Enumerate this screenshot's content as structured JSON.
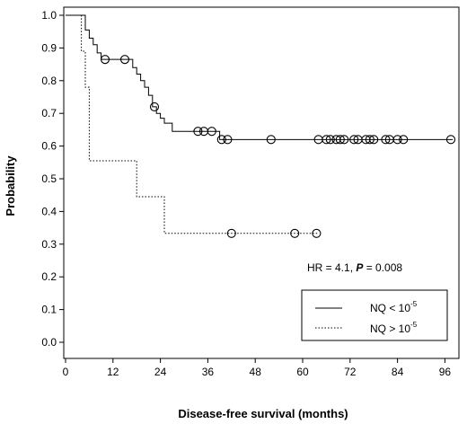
{
  "chart_data": {
    "type": "line",
    "title": "",
    "xlabel": "Disease-free survival (months)",
    "ylabel": "Probability",
    "xlim": [
      0,
      100
    ],
    "ylim": [
      0,
      1.0
    ],
    "x_ticks": [
      0,
      12,
      24,
      36,
      48,
      60,
      72,
      84,
      96
    ],
    "y_ticks": [
      0.0,
      0.1,
      0.2,
      0.3,
      0.4,
      0.5,
      0.6,
      0.7,
      0.8,
      0.9,
      1.0
    ],
    "x_tick_labels": [
      "0",
      "12",
      "24",
      "36",
      "48",
      "60",
      "72",
      "84",
      "96"
    ],
    "y_tick_labels": [
      "0.0",
      "0.1",
      "0.2",
      "0.3",
      "0.4",
      "0.5",
      "0.6",
      "0.7",
      "0.8",
      "0.9",
      "1.0"
    ],
    "grid": false,
    "legend_position": "bottom-right",
    "annotation": {
      "prefix": "HR = 4.1, ",
      "p_label": "P",
      "suffix": " = 0.008"
    },
    "series": [
      {
        "name": "NQ < 10",
        "name_sup": "-5",
        "line_style": "solid",
        "color": "#000000",
        "steps": [
          [
            0,
            1.0
          ],
          [
            5,
            0.955
          ],
          [
            6,
            0.93
          ],
          [
            7,
            0.91
          ],
          [
            8,
            0.885
          ],
          [
            9,
            0.865
          ],
          [
            17,
            0.84
          ],
          [
            18,
            0.82
          ],
          [
            19,
            0.8
          ],
          [
            20,
            0.78
          ],
          [
            21,
            0.755
          ],
          [
            22,
            0.72
          ],
          [
            23,
            0.7
          ],
          [
            24,
            0.685
          ],
          [
            25,
            0.67
          ],
          [
            27,
            0.645
          ],
          [
            39,
            0.62
          ],
          [
            98,
            0.62
          ]
        ],
        "censored": [
          [
            10,
            0.865
          ],
          [
            15,
            0.865
          ],
          [
            22.5,
            0.72
          ],
          [
            33.5,
            0.645
          ],
          [
            35,
            0.645
          ],
          [
            37,
            0.645
          ],
          [
            39.5,
            0.62
          ],
          [
            41,
            0.62
          ],
          [
            52,
            0.62
          ],
          [
            64,
            0.62
          ],
          [
            66,
            0.62
          ],
          [
            67,
            0.62
          ],
          [
            68.5,
            0.62
          ],
          [
            69.5,
            0.62
          ],
          [
            70.5,
            0.62
          ],
          [
            73,
            0.62
          ],
          [
            74,
            0.62
          ],
          [
            76,
            0.62
          ],
          [
            77,
            0.62
          ],
          [
            78,
            0.62
          ],
          [
            81,
            0.62
          ],
          [
            82,
            0.62
          ],
          [
            84,
            0.62
          ],
          [
            85.5,
            0.62
          ],
          [
            97.5,
            0.62
          ]
        ]
      },
      {
        "name": "NQ > 10",
        "name_sup": "-5",
        "line_style": "dotted",
        "color": "#000000",
        "steps": [
          [
            0,
            1.0
          ],
          [
            4,
            0.89
          ],
          [
            5,
            0.78
          ],
          [
            6,
            0.555
          ],
          [
            18,
            0.445
          ],
          [
            25,
            0.333
          ],
          [
            64,
            0.333
          ]
        ],
        "censored": [
          [
            42,
            0.333
          ],
          [
            58,
            0.333
          ],
          [
            63.5,
            0.333
          ]
        ]
      }
    ]
  }
}
